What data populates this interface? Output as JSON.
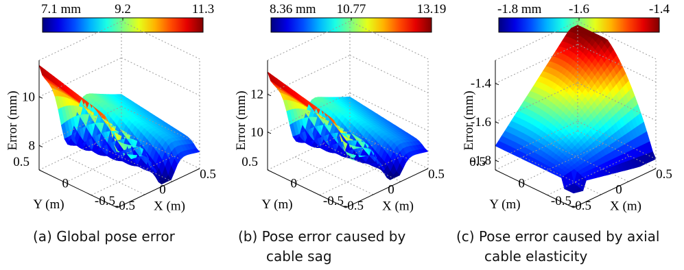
{
  "chart_data": [
    {
      "type": "surface",
      "caption": [
        "(a)  Global pose error"
      ],
      "colorbar": {
        "ticks": [
          "7.1 mm",
          "9.2",
          "11.3"
        ],
        "range": [
          7.1,
          11.3
        ],
        "colormap": "jet"
      },
      "xlabel": "X (m)",
      "ylabel": "Y (m)",
      "zlabel": "Error (mm)",
      "xticks": [
        "-0.5",
        "0",
        "0.5"
      ],
      "yticks": [
        "0.5",
        "0",
        "-0.5"
      ],
      "zticks": [
        "10",
        "8"
      ],
      "zlim": [
        7,
        11.5
      ],
      "corners": {
        "back_left": 11.3,
        "back_right": 8.5,
        "front_left": 10.4,
        "front_right": 8.0
      },
      "valley_min": 7.1
    },
    {
      "type": "surface",
      "caption": [
        "(b)  Pose error caused by",
        "cable sag"
      ],
      "colorbar": {
        "ticks": [
          "8.36 mm",
          "10.77",
          "13.19"
        ],
        "range": [
          8.36,
          13.19
        ],
        "colormap": "jet"
      },
      "xlabel": "X (m)",
      "ylabel": "Y (m)",
      "zlabel": "Error (mm)",
      "xticks": [
        "-0.5",
        "0",
        "0.5"
      ],
      "yticks": [
        "0.5",
        "0",
        "-0.5"
      ],
      "zticks": [
        "12",
        "10"
      ],
      "zlim": [
        8,
        13.8
      ],
      "corners": {
        "back_left": 13.19,
        "back_right": 9.8,
        "front_left": 12.2,
        "front_right": 9.2
      },
      "valley_min": 8.36
    },
    {
      "type": "surface",
      "caption": [
        "(c)  Pose error caused by axial",
        "cable elasticity"
      ],
      "colorbar": {
        "ticks": [
          "-1.8 mm",
          "-1.6",
          "-1.4"
        ],
        "range": [
          -1.8,
          -1.3
        ],
        "colormap": "jet"
      },
      "xlabel": "X (m)",
      "ylabel": "Y (m)",
      "zlabel": "Error (mm)",
      "xticks": [
        "-0.5",
        "0",
        "0.5"
      ],
      "yticks": [
        "0.5",
        "0",
        "-0.5"
      ],
      "zticks": [
        "-1.4",
        "-1.6",
        "-1.8"
      ],
      "zlim": [
        -1.85,
        -1.28
      ],
      "ridge_max": -1.3,
      "corner_min": -1.8
    }
  ]
}
